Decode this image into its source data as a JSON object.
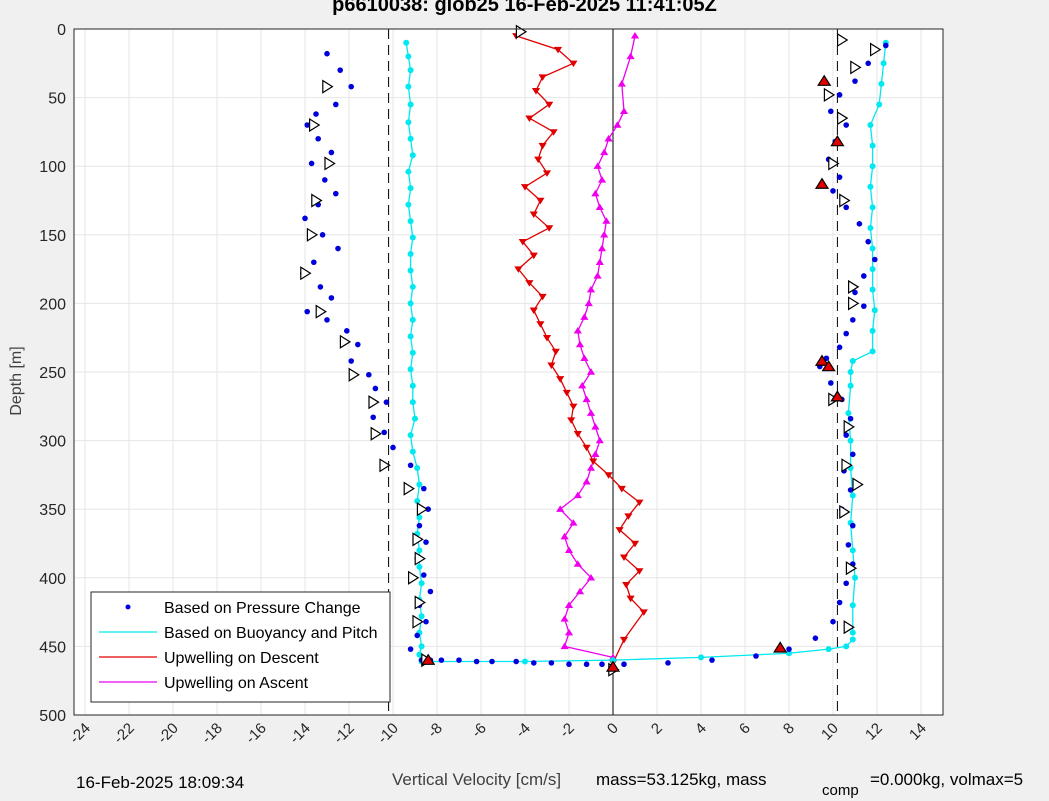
{
  "chart_data": {
    "type": "scatter",
    "title": "p6610038: glob25 16-Feb-2025 11:41:05Z",
    "xlabel": "Vertical Velocity [cm/s]",
    "ylabel": "Depth [m]",
    "xlim": [
      -24.5,
      15
    ],
    "ylim": [
      0,
      500
    ],
    "y_reversed": true,
    "grid": true,
    "x_ticks": [
      -24,
      -22,
      -20,
      -18,
      -16,
      -14,
      -12,
      -10,
      -8,
      -6,
      -4,
      -2,
      0,
      2,
      4,
      6,
      8,
      10,
      12,
      14
    ],
    "x_tick_labels": [
      "-24",
      "-22",
      "-20",
      "-18",
      "-16",
      "-14",
      "-12",
      "-10",
      "-8",
      "-6",
      "-4",
      "-2",
      "0",
      "2",
      "4",
      "6",
      "8",
      "10",
      "12",
      "14"
    ],
    "y_ticks": [
      0,
      50,
      100,
      150,
      200,
      250,
      300,
      350,
      400,
      450,
      500
    ],
    "y_tick_labels": [
      "0",
      "50",
      "100",
      "150",
      "200",
      "250",
      "300",
      "350",
      "400",
      "450",
      "500"
    ],
    "reference_lines": [
      {
        "x": -10.2,
        "style": "dashed"
      },
      {
        "x": 10.2,
        "style": "dashed"
      },
      {
        "x": 0,
        "style": "solid"
      }
    ],
    "legend_position": "bottom-left",
    "series": [
      {
        "name": "Based on Pressure Change",
        "style": "dots",
        "color": "#0000dd",
        "segments": [
          {
            "x": [
              -13.0,
              -12.4,
              -11.9,
              -12.6,
              -13.5,
              -13.9,
              -13.4,
              -12.8,
              -13.7,
              -13.1,
              -12.6,
              -13.4,
              -14.0,
              -13.2,
              -12.5,
              -13.6,
              -14.1,
              -13.3,
              -12.8,
              -13.9,
              -13.0,
              -12.1,
              -11.6,
              -11.9,
              -11.1,
              -10.8,
              -10.3,
              -10.9,
              -10.4,
              -10.0,
              -9.2,
              -8.6,
              -8.4,
              -8.8,
              -8.5,
              -8.9,
              -8.6,
              -8.3,
              -8.8,
              -8.5,
              -8.9,
              -9.2,
              -8.7
            ],
            "y": [
              18,
              30,
              42,
              55,
              62,
              70,
              80,
              90,
              98,
              110,
              120,
              128,
              138,
              150,
              160,
              170,
              178,
              188,
              196,
              206,
              212,
              220,
              230,
              242,
              252,
              262,
              272,
              283,
              294,
              305,
              318,
              335,
              350,
              362,
              374,
              386,
              398,
              410,
              420,
              432,
              442,
              452,
              460
            ]
          },
          {
            "x": [
              12.4,
              11.6,
              11.0,
              10.3,
              9.9,
              10.6,
              10.1,
              9.8,
              10.3,
              10.0,
              10.6,
              11.2,
              11.6,
              11.9,
              11.4,
              11.0,
              11.4,
              10.9,
              10.6,
              10.3,
              9.7,
              9.4,
              9.9,
              10.4,
              10.8,
              10.6,
              10.9,
              10.5,
              10.8,
              10.4,
              10.9,
              10.7,
              10.9,
              10.6,
              10.3,
              10.0,
              9.2,
              8.0,
              6.5,
              4.5,
              2.5,
              0.5
            ],
            "y": [
              12,
              25,
              38,
              48,
              60,
              70,
              82,
              95,
              108,
              118,
              130,
              142,
              155,
              168,
              180,
              192,
              202,
              212,
              222,
              232,
              240,
              246,
              258,
              270,
              284,
              296,
              310,
              322,
              336,
              350,
              362,
              376,
              390,
              404,
              418,
              432,
              444,
              452,
              457,
              460,
              462,
              463
            ]
          },
          {
            "x": [
              -0.5,
              -1.2,
              -2.0,
              -2.8,
              -3.6,
              -4.4,
              -5.5,
              -6.2,
              -7.0,
              -7.8,
              -8.3
            ],
            "y": [
              463,
              463,
              463,
              462,
              462,
              461,
              461,
              461,
              460,
              460,
              460
            ]
          }
        ]
      },
      {
        "name": "Based on Buoyancy and Pitch",
        "style": "line-dots",
        "color": "#00e8f0",
        "segments": [
          {
            "x": [
              -9.4,
              -9.3,
              -9.2,
              -9.3,
              -9.2,
              -9.3,
              -9.2,
              -9.1,
              -9.3,
              -9.2,
              -9.3,
              -9.2,
              -9.1,
              -9.2,
              -9.2,
              -9.1,
              -9.2,
              -9.1,
              -9.2,
              -9.1,
              -9.2,
              -9.1,
              -9.1,
              -9.0,
              -9.2,
              -9.1,
              -8.9,
              -8.8,
              -8.9,
              -8.8,
              -8.9,
              -8.8,
              -8.8,
              -8.7,
              -8.8,
              -8.7,
              -8.8,
              -8.7,
              -8.8,
              -8.7
            ],
            "y": [
              10,
              20,
              30,
              42,
              55,
              68,
              80,
              92,
              104,
              116,
              128,
              140,
              152,
              164,
              176,
              188,
              200,
              212,
              224,
              236,
              248,
              260,
              272,
              284,
              296,
              308,
              320,
              332,
              344,
              356,
              368,
              380,
              392,
              404,
              416,
              428,
              440,
              450,
              456,
              460
            ]
          },
          {
            "x": [
              -8.7,
              -4.0,
              0.0,
              4.0,
              8.0,
              9.8,
              10.6,
              10.9
            ],
            "y": [
              461,
              461,
              460,
              458,
              455,
              452,
              450,
              445
            ]
          },
          {
            "x": [
              10.9,
              10.9,
              11.0,
              10.9,
              10.8,
              10.9,
              10.8,
              10.8,
              10.7,
              10.8,
              10.8,
              10.9,
              11.8,
              11.8,
              11.9,
              11.8,
              11.8,
              11.8,
              11.7,
              11.8,
              11.7,
              11.8,
              11.8,
              11.7,
              12.1,
              12.2,
              12.3,
              12.4
            ],
            "y": [
              440,
              420,
              400,
              380,
              360,
              340,
              320,
              300,
              280,
              260,
              250,
              242,
              235,
              220,
              205,
              190,
              175,
              160,
              145,
              130,
              115,
              100,
              85,
              70,
              55,
              40,
              25,
              10
            ]
          }
        ]
      },
      {
        "name": "Upwelling on Descent",
        "style": "line-triangles-down",
        "color": "#e00000",
        "x": [
          -4.4,
          -2.5,
          -1.8,
          -3.2,
          -3.5,
          -2.9,
          -3.8,
          -2.7,
          -3.2,
          -3.4,
          -3.0,
          -4.0,
          -3.3,
          -3.6,
          -2.9,
          -4.1,
          -3.6,
          -4.3,
          -3.8,
          -3.2,
          -3.6,
          -3.3,
          -3.0,
          -2.6,
          -2.8,
          -2.4,
          -2.1,
          -1.8,
          -1.9,
          -1.6,
          -1.2,
          -0.9,
          -0.2,
          0.4,
          1.2,
          0.7,
          0.3,
          1.0,
          0.5,
          1.2,
          0.6,
          0.8,
          1.4,
          0.5,
          0.0
        ],
        "y": [
          5,
          15,
          25,
          35,
          45,
          55,
          65,
          75,
          85,
          95,
          105,
          115,
          125,
          135,
          145,
          155,
          165,
          175,
          185,
          195,
          205,
          215,
          225,
          235,
          245,
          255,
          265,
          275,
          285,
          295,
          305,
          315,
          325,
          335,
          345,
          355,
          365,
          375,
          385,
          395,
          405,
          415,
          425,
          445,
          462
        ]
      },
      {
        "name": "Upwelling on Ascent",
        "style": "line-triangles-up",
        "color": "#ee00ee",
        "x": [
          0.0,
          -2.2,
          -2.0,
          -2.2,
          -2.0,
          -1.5,
          -1.0,
          -1.6,
          -2.0,
          -2.2,
          -1.8,
          -2.4,
          -1.6,
          -1.2,
          -1.0,
          -0.8,
          -0.6,
          -0.8,
          -1.0,
          -1.2,
          -1.4,
          -1.0,
          -1.3,
          -1.5,
          -1.6,
          -1.3,
          -1.1,
          -1.0,
          -0.7,
          -0.6,
          -0.5,
          -0.4,
          -0.3,
          -0.6,
          -0.8,
          -0.5,
          -0.7,
          -0.4,
          -0.2,
          0.2,
          0.5,
          0.4,
          0.8,
          1.0
        ],
        "y": [
          458,
          450,
          440,
          430,
          420,
          410,
          400,
          390,
          380,
          370,
          360,
          350,
          340,
          330,
          320,
          310,
          300,
          290,
          280,
          270,
          260,
          250,
          240,
          230,
          220,
          210,
          200,
          190,
          180,
          170,
          160,
          150,
          140,
          130,
          120,
          110,
          100,
          90,
          80,
          70,
          60,
          40,
          20,
          5
        ]
      }
    ],
    "markers": {
      "black_triangles": [
        [
          -13.0,
          42
        ],
        [
          -13.6,
          70
        ],
        [
          -12.9,
          98
        ],
        [
          -13.5,
          125
        ],
        [
          -13.7,
          150
        ],
        [
          -14.0,
          178
        ],
        [
          -13.3,
          206
        ],
        [
          -12.2,
          228
        ],
        [
          -11.8,
          252
        ],
        [
          -10.9,
          272
        ],
        [
          -10.8,
          295
        ],
        [
          -10.4,
          318
        ],
        [
          -9.3,
          335
        ],
        [
          -8.7,
          350
        ],
        [
          -8.9,
          372
        ],
        [
          -8.8,
          386
        ],
        [
          -9.1,
          400
        ],
        [
          -8.8,
          418
        ],
        [
          -8.9,
          432
        ],
        [
          -8.5,
          460
        ],
        [
          11.9,
          15
        ],
        [
          11.0,
          28
        ],
        [
          10.4,
          8
        ],
        [
          9.8,
          48
        ],
        [
          10.4,
          65
        ],
        [
          10.0,
          98
        ],
        [
          10.5,
          125
        ],
        [
          10.9,
          188
        ],
        [
          10.9,
          200
        ],
        [
          10.0,
          270
        ],
        [
          10.7,
          290
        ],
        [
          10.6,
          318
        ],
        [
          11.1,
          332
        ],
        [
          10.5,
          352
        ],
        [
          10.8,
          393
        ],
        [
          10.7,
          436
        ],
        [
          0.0,
          467
        ],
        [
          -4.2,
          2
        ]
      ],
      "red_triangles": [
        [
          9.6,
          38
        ],
        [
          10.2,
          82
        ],
        [
          9.5,
          113
        ],
        [
          9.5,
          242
        ],
        [
          9.8,
          246
        ],
        [
          10.2,
          268
        ],
        [
          7.6,
          451
        ],
        [
          -8.4,
          460
        ],
        [
          0.0,
          465
        ]
      ]
    }
  },
  "footer": {
    "date": "16-Feb-2025 18:09:34",
    "mass": "mass=53.125kg, mass",
    "comp": "comp",
    "rest": "=0.000kg, volmax=5"
  }
}
